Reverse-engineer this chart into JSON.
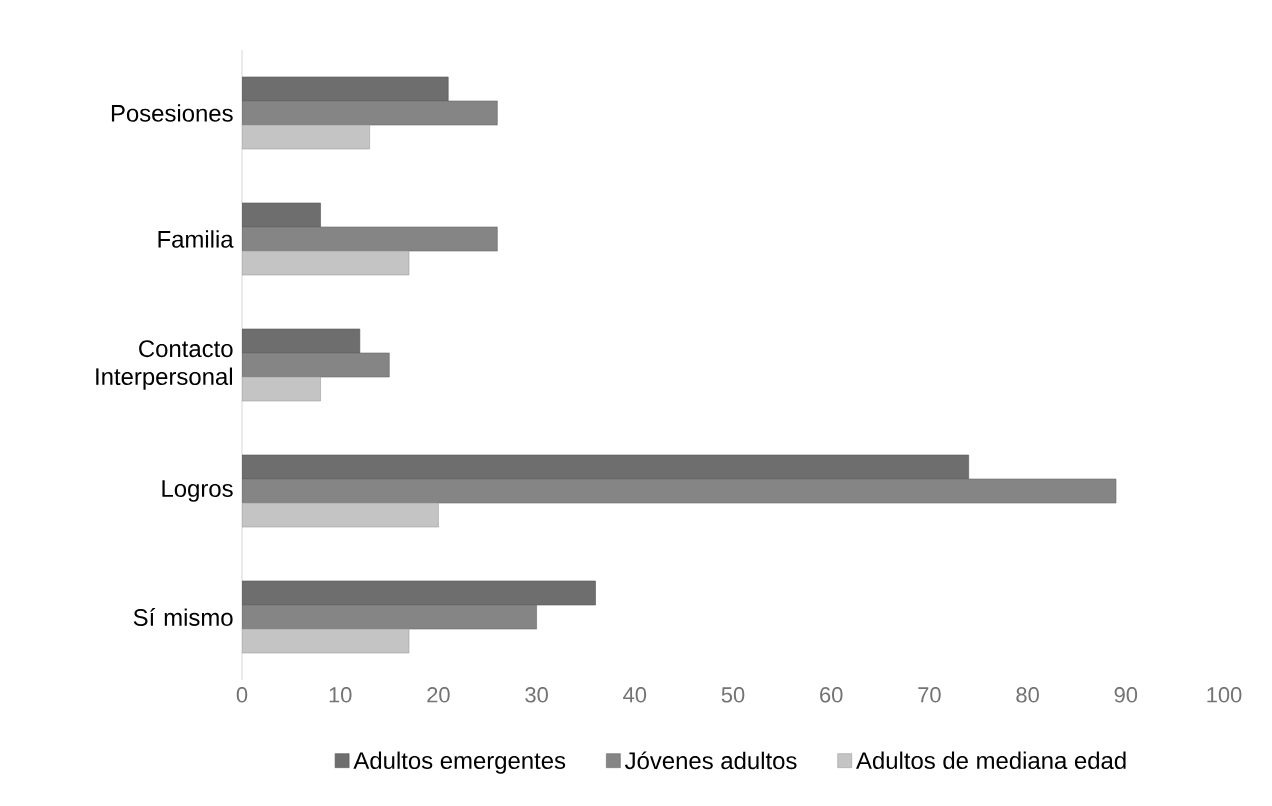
{
  "chart_data": {
    "type": "bar",
    "orientation": "horizontal",
    "categories": [
      "Posesiones",
      "Familia",
      "Contacto Interpersonal",
      "Logros",
      "Sí mismo"
    ],
    "series": [
      {
        "name": "Adultos emergentes",
        "color": "#6e6e6e",
        "values": [
          21,
          8,
          12,
          74,
          36
        ]
      },
      {
        "name": "Jóvenes adultos",
        "color": "#858585",
        "values": [
          26,
          26,
          15,
          89,
          30
        ]
      },
      {
        "name": "Adultos de mediana edad",
        "color": "#c4c4c4",
        "values": [
          13,
          17,
          8,
          20,
          17
        ]
      }
    ],
    "xlim": [
      0,
      100
    ],
    "xticks": [
      0,
      10,
      20,
      30,
      40,
      50,
      60,
      70,
      80,
      90,
      100
    ],
    "legend": "bottom"
  }
}
